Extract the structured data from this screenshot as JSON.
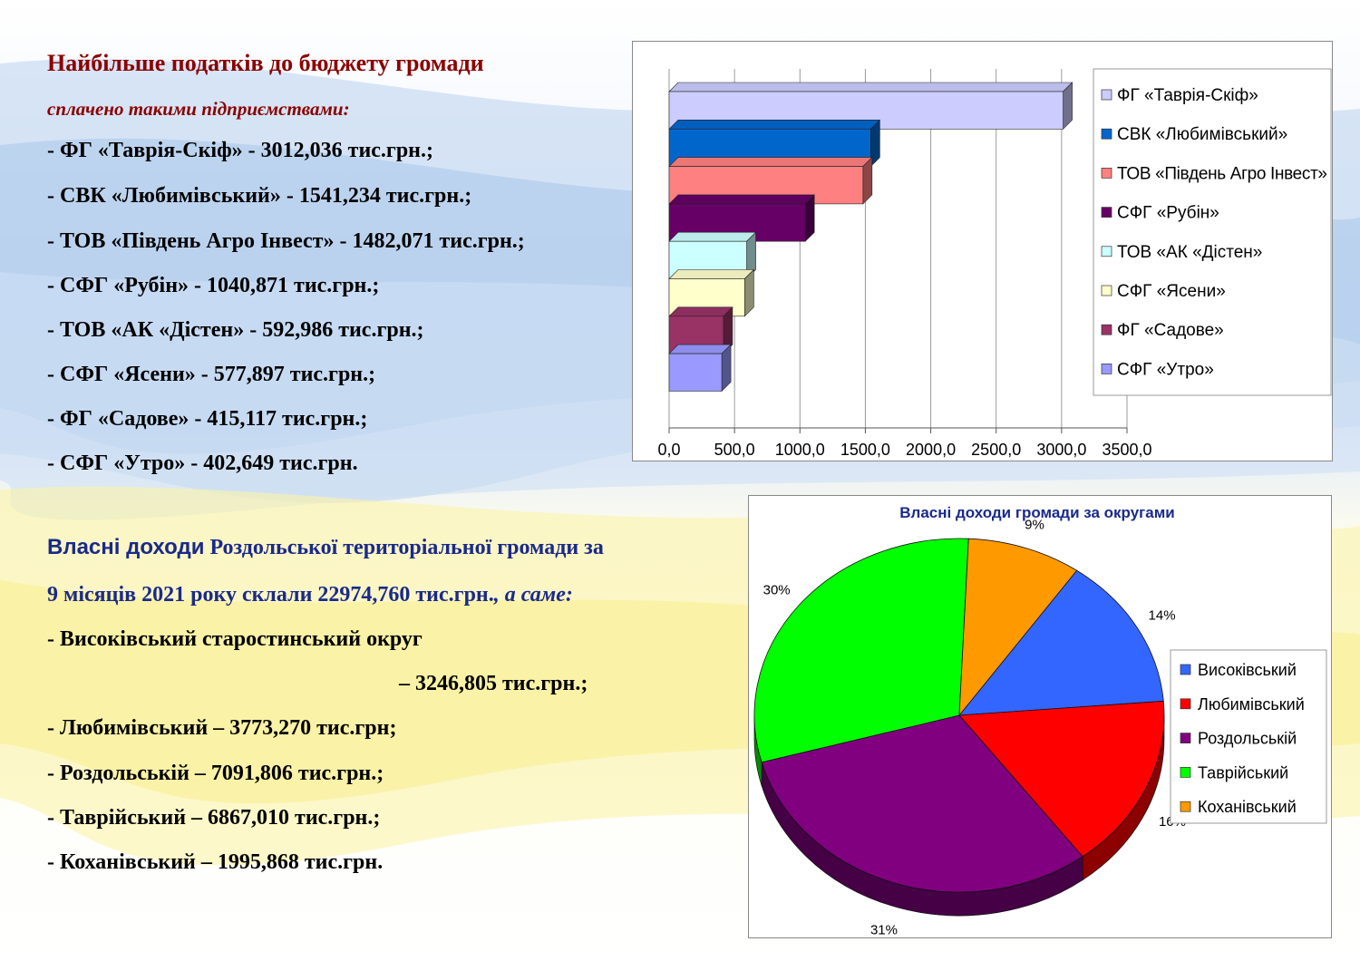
{
  "taxes": {
    "heading": "Найбільше податків до бюджету громади",
    "subheading": "сплачено такими підприємствами:",
    "lines": [
      "- ФГ «Таврія-Скіф» - 3012,036 тис.грн.;",
      "- СВК «Любимівський» - 1541,234 тис.грн.;",
      "- ТОВ «Південь Агро Інвест» - 1482,071 тис.грн.;",
      "- СФГ «Рубін» - 1040,871 тис.грн.;",
      "- ТОВ «АК «Дістен» - 592,986 тис.грн.;",
      "- СФГ «Ясени» - 577,897 тис.грн.;",
      "- ФГ «Садове» - 415,117 тис.грн.;",
      "- СФГ «Утро» - 402,649 тис.грн."
    ]
  },
  "income": {
    "title_part1": "Власні доходи",
    "title_part2": " Роздольської територіальної громади за",
    "line2_part1": "9 місяців 2021 року склали 22974,760 тис.грн.",
    "line2_part2": ", а саме:",
    "lines": [
      "- Високівський старостинський округ",
      "– 3246,805 тис.грн.;",
      "- Любимівський – 3773,270 тис.грн;",
      "- Роздольській – 7091,806 тис.грн.;",
      "- Таврійський – 6867,010 тис.грн.;",
      "- Коханівський – 1995,868 тис.грн."
    ]
  },
  "chart_data": [
    {
      "type": "bar",
      "orientation": "horizontal",
      "categories": [
        "ФГ «Таврія-Скіф»",
        "СВК «Любимівський»",
        "ТОВ «Південь Агро Інвест»",
        "СФГ «Рубін»",
        "ТОВ «АК «Дістен»",
        "СФГ «Ясени»",
        "ФГ «Садове»",
        "СФГ «Утро»"
      ],
      "values": [
        3012.036,
        1541.234,
        1482.071,
        1040.871,
        592.986,
        577.897,
        415.117,
        402.649
      ],
      "colors": [
        "#CCCCFF",
        "#0066CC",
        "#FF8080",
        "#660066",
        "#CCFFFF",
        "#FFFFCC",
        "#993366",
        "#9999FF"
      ],
      "xlim": [
        0,
        3500
      ],
      "xticks": [
        "0,0",
        "500,0",
        "1000,0",
        "1500,0",
        "2000,0",
        "2500,0",
        "3000,0",
        "3500,0"
      ],
      "grid": true,
      "legend": "right"
    },
    {
      "type": "pie",
      "title": "Власні доходи громади за округами",
      "labels": [
        "Високівський",
        "Любимівський",
        "Роздольській",
        "Таврійський",
        "Коханівський"
      ],
      "values": [
        14,
        16,
        31,
        30,
        9
      ],
      "value_labels": [
        "14%",
        "16%",
        "31%",
        "30%",
        "9%"
      ],
      "colors": [
        "#3366FF",
        "#FF0000",
        "#800080",
        "#00FF00",
        "#FF9900"
      ],
      "legend": "right"
    }
  ]
}
